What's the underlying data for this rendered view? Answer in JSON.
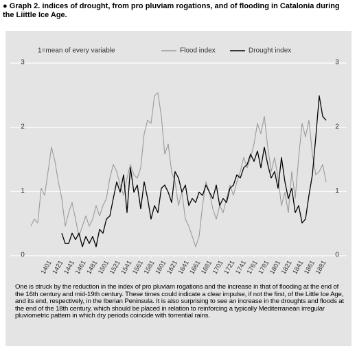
{
  "chart_data": {
    "type": "line",
    "title": "● Graph 2. indices of drought, from pro pluviam rogations, and of flooding in Catalonia during the Liittle Ice Age.",
    "annotation": "1=mean of every variable",
    "caption": "One is struck by the reduction in the index of pro pluviam rogations and the increase in that of flooding at the end of the 16th century and mid-19th century. These times could indicate a clear impulse, if not the first, of the Little Ice Age, and its end, respectively, in the Iberian Peninsula. It is also surprising to see an increase in the droughts and floods at the end of the 18th century, which should be placed in relation to reinforcing a typically Mediterranean irregular pluviometric pattern in which dry periods coincide with torrential rains.",
    "x": [
      1371,
      1377,
      1383,
      1389,
      1395,
      1401,
      1407,
      1413,
      1419,
      1425,
      1431,
      1437,
      1443,
      1449,
      1455,
      1461,
      1467,
      1473,
      1479,
      1485,
      1491,
      1497,
      1503,
      1509,
      1515,
      1521,
      1527,
      1533,
      1539,
      1545,
      1551,
      1557,
      1563,
      1569,
      1575,
      1581,
      1587,
      1593,
      1599,
      1605,
      1611,
      1617,
      1623,
      1629,
      1635,
      1641,
      1647,
      1653,
      1659,
      1665,
      1671,
      1677,
      1683,
      1689,
      1695,
      1701,
      1707,
      1713,
      1719,
      1725,
      1731,
      1737,
      1743,
      1749,
      1755,
      1761,
      1767,
      1773,
      1779,
      1785,
      1791,
      1797,
      1803,
      1809,
      1815,
      1821,
      1827,
      1833,
      1839,
      1845,
      1851,
      1857,
      1863,
      1869,
      1875,
      1881,
      1887
    ],
    "series": [
      {
        "name": "Flood index",
        "color": "#9a9a9a",
        "values": [
          0.46,
          0.57,
          0.51,
          1.05,
          0.94,
          1.31,
          1.69,
          1.47,
          1.15,
          0.89,
          0.46,
          0.67,
          0.83,
          0.57,
          0.3,
          0.46,
          0.62,
          0.46,
          0.57,
          0.78,
          0.62,
          0.78,
          0.89,
          1.21,
          1.42,
          1.31,
          1.1,
          0.94,
          1.21,
          1.42,
          1.26,
          1.21,
          1.37,
          1.9,
          2.11,
          2.06,
          2.49,
          2.54,
          2.17,
          1.58,
          1.74,
          1.31,
          1.15,
          0.78,
          0.99,
          0.57,
          0.46,
          0.3,
          0.14,
          0.3,
          0.78,
          1.15,
          0.99,
          0.73,
          0.57,
          0.78,
          0.67,
          0.89,
          1.1,
          0.94,
          1.15,
          1.31,
          1.53,
          1.37,
          1.53,
          1.74,
          2.06,
          1.9,
          2.17,
          1.69,
          1.31,
          1.53,
          1.21,
          0.78,
          0.99,
          0.67,
          1.31,
          0.89,
          1.53,
          2.06,
          1.85,
          2.11,
          1.58,
          1.26,
          1.31,
          1.42,
          1.15
        ]
      },
      {
        "name": "Drought index",
        "color": "#000000",
        "values": [
          null,
          null,
          null,
          null,
          null,
          null,
          null,
          null,
          null,
          0.35,
          0.19,
          0.19,
          0.35,
          0.25,
          0.35,
          0.14,
          0.3,
          0.19,
          0.3,
          0.14,
          0.41,
          0.35,
          0.57,
          0.62,
          0.89,
          1.15,
          0.99,
          1.26,
          0.67,
          1.37,
          0.99,
          1.1,
          0.73,
          1.15,
          0.89,
          0.57,
          0.78,
          0.67,
          1.05,
          1.1,
          0.99,
          0.83,
          1.31,
          1.21,
          0.99,
          1.1,
          0.78,
          0.89,
          0.83,
          0.99,
          0.94,
          1.1,
          0.99,
          0.89,
          1.1,
          0.78,
          0.89,
          0.83,
          1.05,
          1.1,
          1.26,
          1.21,
          1.37,
          1.42,
          1.58,
          1.47,
          1.63,
          1.37,
          1.69,
          1.42,
          1.21,
          1.31,
          1.05,
          1.53,
          1.15,
          0.89,
          1.05,
          0.67,
          0.78,
          0.51,
          0.57,
          0.94,
          1.26,
          1.85,
          2.49,
          2.17,
          2.11
        ]
      }
    ],
    "xlim": [
      1365,
      1899
    ],
    "xticks": [
      1401,
      1421,
      1441,
      1461,
      1481,
      1501,
      1521,
      1541,
      1561,
      1581,
      1601,
      1621,
      1641,
      1661,
      1681,
      1701,
      1721,
      1741,
      1761,
      1781,
      1801,
      1821,
      1841,
      1861,
      1881
    ],
    "ylim": [
      0,
      3
    ],
    "yticks": [
      0,
      1,
      2,
      3
    ],
    "grid": true,
    "legend": "top"
  }
}
